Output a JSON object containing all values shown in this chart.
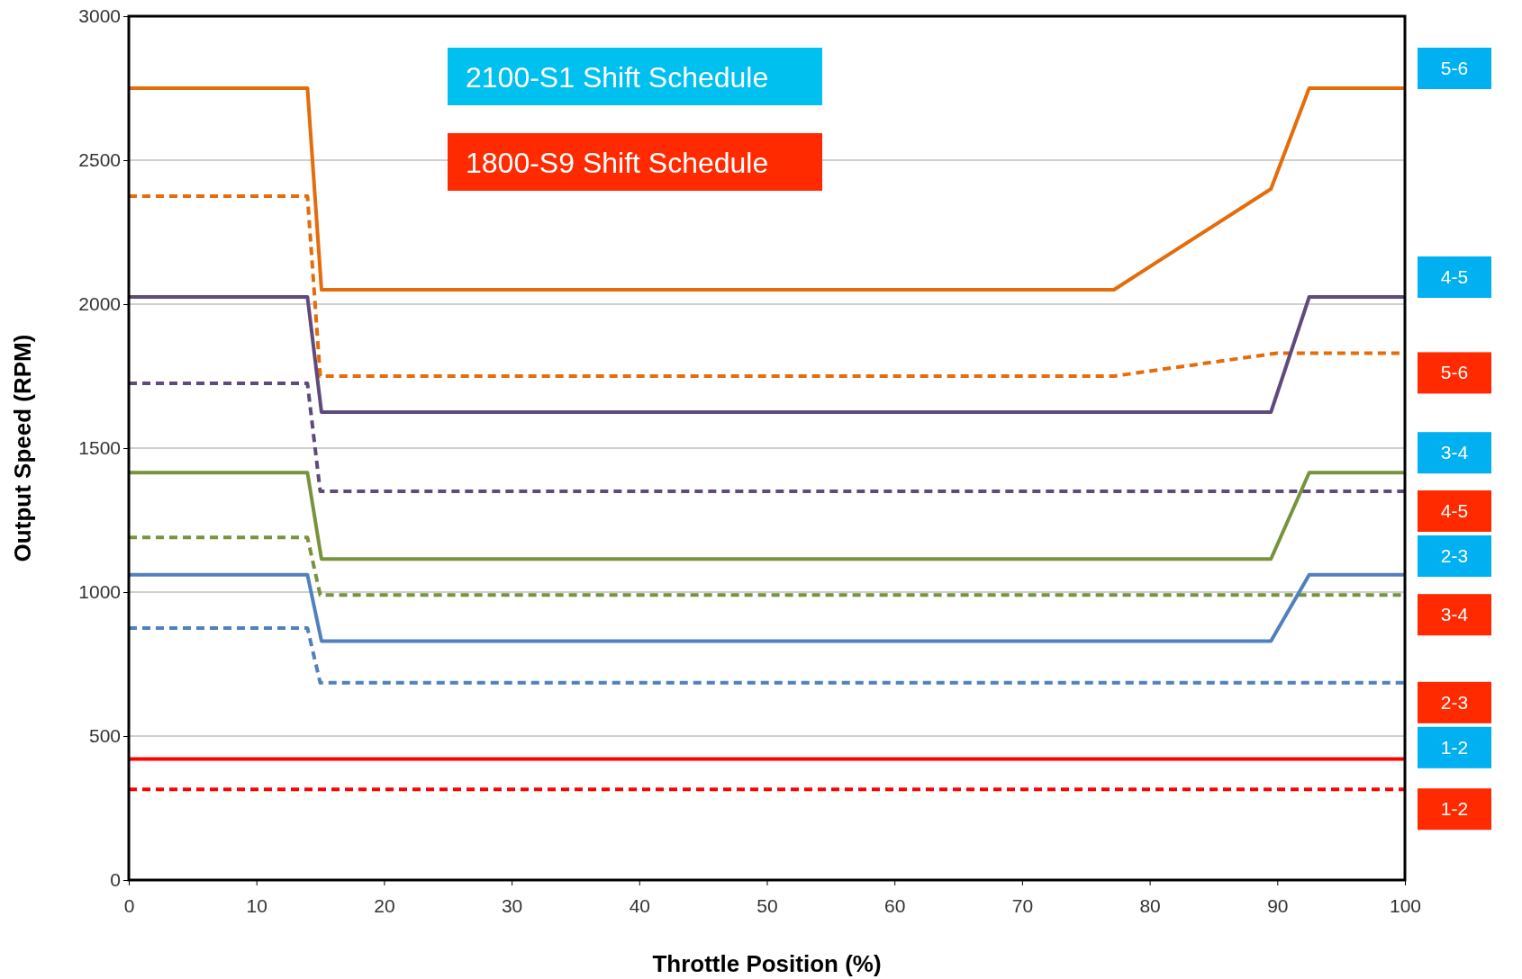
{
  "chart_data": {
    "type": "line",
    "xlabel": "Throttle Position (%)",
    "ylabel": "Output Speed (RPM)",
    "annotations": [
      "2100-S1 Shift Schedule",
      "1800-S9 Shift Schedule"
    ],
    "xlim": [
      0,
      100
    ],
    "xticks": [
      0,
      10,
      20,
      30,
      40,
      50,
      60,
      70,
      80,
      90,
      100
    ],
    "ylim": [
      0,
      3000
    ],
    "yticks": [
      0,
      500,
      1000,
      1500,
      2000,
      2500,
      3000
    ],
    "grid": "y",
    "marker": "none",
    "series": [
      {
        "name": "5-6",
        "color": "#e46c0a",
        "line_style": "solid",
        "x": [
          0,
          14,
          15.1,
          77.2,
          89.5,
          92.5,
          100
        ],
        "values": [
          2750,
          2750,
          2050,
          2050,
          2400,
          2750,
          2750
        ]
      },
      {
        "name": "5-6",
        "color": "#e46c0a",
        "line_style": "dashed",
        "x": [
          0,
          14,
          15,
          77.2,
          90,
          100
        ],
        "values": [
          2375,
          2375,
          1750,
          1750,
          1830,
          1830
        ]
      },
      {
        "name": "4-5",
        "color": "#604a7b",
        "line_style": "solid",
        "x": [
          0,
          14,
          15.1,
          89.5,
          92.5,
          100
        ],
        "values": [
          2025,
          2025,
          1625,
          1625,
          2025,
          2025
        ]
      },
      {
        "name": "4-5",
        "color": "#604a7b",
        "line_style": "dashed",
        "x": [
          0,
          14,
          15,
          100
        ],
        "values": [
          1725,
          1725,
          1350,
          1350
        ]
      },
      {
        "name": "3-4",
        "color": "#77933c",
        "line_style": "solid",
        "x": [
          0,
          14,
          15.1,
          89.5,
          92.5,
          100
        ],
        "values": [
          1415,
          1415,
          1115,
          1115,
          1415,
          1415
        ]
      },
      {
        "name": "3-4",
        "color": "#77933c",
        "line_style": "dashed",
        "x": [
          0,
          14,
          15,
          100
        ],
        "values": [
          1190,
          1190,
          990,
          990
        ]
      },
      {
        "name": "2-3",
        "color": "#4f81bd",
        "line_style": "solid",
        "x": [
          0,
          14,
          15.1,
          89.5,
          92.5,
          100
        ],
        "values": [
          1060,
          1060,
          830,
          830,
          1060,
          1060
        ]
      },
      {
        "name": "2-3",
        "color": "#4f81bd",
        "line_style": "dashed",
        "x": [
          0,
          14,
          15,
          100
        ],
        "values": [
          875,
          875,
          685,
          685
        ]
      },
      {
        "name": "1-2",
        "color": "#ff0000",
        "line_style": "solid",
        "x": [
          0,
          100
        ],
        "values": [
          420,
          420
        ]
      },
      {
        "name": "1-2",
        "color": "#ff0000",
        "line_style": "dashed",
        "x": [
          0,
          100
        ],
        "values": [
          315,
          315
        ]
      }
    ]
  }
}
